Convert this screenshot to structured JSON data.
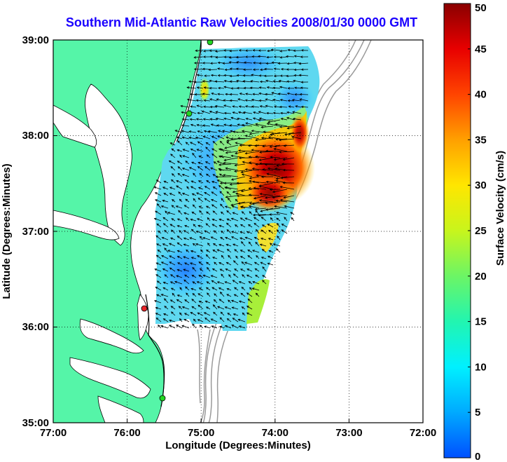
{
  "title": "Southern Mid-Atlantic Raw Velocities 2008/01/30 0000 GMT",
  "map": {
    "x_axis_label": "Longitude (Degrees:Minutes)",
    "y_axis_label": "Latitude (Degrees:Minutes)",
    "x_ticks": [
      "77:00",
      "76:00",
      "75:00",
      "74:00",
      "73:00",
      "72:00"
    ],
    "y_ticks": [
      "39:00",
      "38:00",
      "37:00",
      "36:00",
      "35:00"
    ],
    "lon_range": [
      -77,
      -72
    ],
    "lat_range": [
      35,
      39
    ],
    "land_color": "#55f5a8",
    "ocean_color": "#ffffff",
    "station_colors": {
      "active": "#22d622",
      "inactive": "#e8252a"
    }
  },
  "colorbar": {
    "label": "Surface Velocity (cm/s)",
    "ticks": [
      "0",
      "5",
      "10",
      "15",
      "20",
      "25",
      "30",
      "35",
      "40",
      "45",
      "50"
    ],
    "range": [
      0,
      50
    ],
    "colors": [
      "#0050ff",
      "#00aaff",
      "#00f0ff",
      "#22f5b0",
      "#6cf565",
      "#c8f51c",
      "#ffe600",
      "#ffa000",
      "#ff4400",
      "#e80000",
      "#8a0000"
    ]
  }
}
